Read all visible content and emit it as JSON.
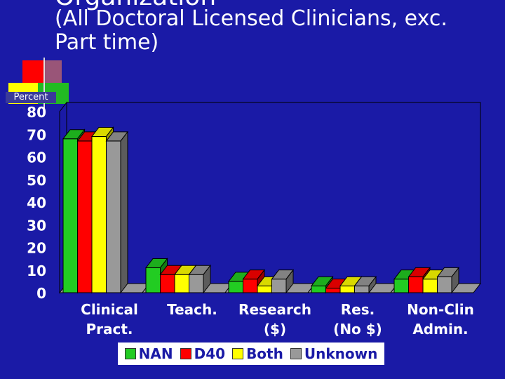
{
  "slide": {
    "title_top": "Organization",
    "title_sub": "(All Doctoral Licensed Clinicians, exc. Part time)",
    "y_label": "Percent"
  },
  "chart_data": {
    "type": "bar",
    "categories": [
      [
        "Clinical",
        "Pract."
      ],
      [
        "Teach."
      ],
      [
        "Research",
        "($)"
      ],
      [
        "Res.",
        "(No $)"
      ],
      [
        "Non-Clin",
        "Admin."
      ]
    ],
    "series": [
      {
        "name": "NAN",
        "color": "#22cc22",
        "values": [
          68,
          11,
          5,
          3,
          6
        ]
      },
      {
        "name": "D40",
        "color": "#ff0000",
        "values": [
          67,
          8,
          6,
          2,
          7
        ]
      },
      {
        "name": "Both",
        "color": "#ffff00",
        "values": [
          69,
          8,
          3,
          3,
          6
        ]
      },
      {
        "name": "Unknown",
        "color": "#999999",
        "values": [
          67,
          8,
          6,
          3,
          7
        ]
      }
    ],
    "ylim": [
      0,
      80
    ],
    "yticks": [
      "0",
      "10",
      "20",
      "30",
      "40",
      "50",
      "60",
      "70",
      "80"
    ],
    "grid": false,
    "legend_position": "bottom"
  }
}
